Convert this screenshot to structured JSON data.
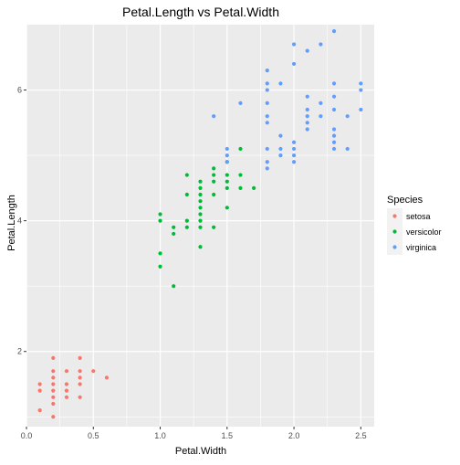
{
  "chart_data": {
    "type": "scatter",
    "title": "Petal.Length vs Petal.Width",
    "xlabel": "Petal.Width",
    "ylabel": "Petal.Length",
    "xlim": [
      0.0,
      2.6
    ],
    "ylim": [
      0.85,
      7.0
    ],
    "x_ticks": [
      0.0,
      0.5,
      1.0,
      1.5,
      2.0,
      2.5
    ],
    "x_tick_labels": [
      "0.0",
      "0.5",
      "1.0",
      "1.5",
      "2.0",
      "2.5"
    ],
    "y_ticks": [
      2,
      4,
      6
    ],
    "y_tick_labels": [
      "2",
      "4",
      "6"
    ],
    "grid": true,
    "legend": {
      "title": "Species",
      "position": "right"
    },
    "colors": {
      "panel": "#EBEBEB",
      "grid": "#FFFFFF"
    },
    "series": [
      {
        "name": "setosa",
        "color": "#F8766D",
        "points": [
          [
            0.1,
            1.1
          ],
          [
            0.1,
            1.4
          ],
          [
            0.1,
            1.5
          ],
          [
            0.2,
            1.0
          ],
          [
            0.2,
            1.2
          ],
          [
            0.2,
            1.3
          ],
          [
            0.2,
            1.4
          ],
          [
            0.2,
            1.5
          ],
          [
            0.2,
            1.6
          ],
          [
            0.2,
            1.7
          ],
          [
            0.2,
            1.9
          ],
          [
            0.3,
            1.3
          ],
          [
            0.3,
            1.4
          ],
          [
            0.3,
            1.5
          ],
          [
            0.3,
            1.7
          ],
          [
            0.4,
            1.3
          ],
          [
            0.4,
            1.5
          ],
          [
            0.4,
            1.6
          ],
          [
            0.4,
            1.7
          ],
          [
            0.4,
            1.9
          ],
          [
            0.5,
            1.7
          ],
          [
            0.6,
            1.6
          ]
        ]
      },
      {
        "name": "versicolor",
        "color": "#00BA38",
        "points": [
          [
            1.0,
            3.3
          ],
          [
            1.0,
            3.5
          ],
          [
            1.0,
            4.0
          ],
          [
            1.0,
            4.1
          ],
          [
            1.1,
            3.0
          ],
          [
            1.1,
            3.8
          ],
          [
            1.1,
            3.9
          ],
          [
            1.2,
            3.9
          ],
          [
            1.2,
            4.0
          ],
          [
            1.2,
            4.4
          ],
          [
            1.2,
            4.7
          ],
          [
            1.3,
            3.6
          ],
          [
            1.3,
            3.9
          ],
          [
            1.3,
            4.0
          ],
          [
            1.3,
            4.1
          ],
          [
            1.3,
            4.2
          ],
          [
            1.3,
            4.3
          ],
          [
            1.3,
            4.4
          ],
          [
            1.3,
            4.5
          ],
          [
            1.3,
            4.6
          ],
          [
            1.4,
            3.9
          ],
          [
            1.4,
            4.4
          ],
          [
            1.4,
            4.6
          ],
          [
            1.4,
            4.7
          ],
          [
            1.4,
            4.8
          ],
          [
            1.5,
            4.2
          ],
          [
            1.5,
            4.5
          ],
          [
            1.5,
            4.6
          ],
          [
            1.5,
            4.7
          ],
          [
            1.5,
            4.9
          ],
          [
            1.6,
            4.5
          ],
          [
            1.6,
            4.7
          ],
          [
            1.6,
            5.1
          ],
          [
            1.7,
            4.5
          ]
        ]
      },
      {
        "name": "virginica",
        "color": "#619CFF",
        "points": [
          [
            1.4,
            5.6
          ],
          [
            1.5,
            4.9
          ],
          [
            1.5,
            5.0
          ],
          [
            1.5,
            5.1
          ],
          [
            1.6,
            5.8
          ],
          [
            1.8,
            4.8
          ],
          [
            1.8,
            4.9
          ],
          [
            1.8,
            5.1
          ],
          [
            1.8,
            5.5
          ],
          [
            1.8,
            5.6
          ],
          [
            1.8,
            5.8
          ],
          [
            1.8,
            6.0
          ],
          [
            1.8,
            6.1
          ],
          [
            1.8,
            6.3
          ],
          [
            1.9,
            5.0
          ],
          [
            1.9,
            5.1
          ],
          [
            1.9,
            5.3
          ],
          [
            1.9,
            6.1
          ],
          [
            2.0,
            4.9
          ],
          [
            2.0,
            5.0
          ],
          [
            2.0,
            5.1
          ],
          [
            2.0,
            5.2
          ],
          [
            2.0,
            6.4
          ],
          [
            2.0,
            6.7
          ],
          [
            2.1,
            5.4
          ],
          [
            2.1,
            5.5
          ],
          [
            2.1,
            5.6
          ],
          [
            2.1,
            5.7
          ],
          [
            2.1,
            5.9
          ],
          [
            2.1,
            6.6
          ],
          [
            2.2,
            5.6
          ],
          [
            2.2,
            5.8
          ],
          [
            2.2,
            6.7
          ],
          [
            2.3,
            5.1
          ],
          [
            2.3,
            5.2
          ],
          [
            2.3,
            5.3
          ],
          [
            2.3,
            5.4
          ],
          [
            2.3,
            5.7
          ],
          [
            2.3,
            5.9
          ],
          [
            2.3,
            6.1
          ],
          [
            2.3,
            6.9
          ],
          [
            2.4,
            5.1
          ],
          [
            2.4,
            5.6
          ],
          [
            2.5,
            5.7
          ],
          [
            2.5,
            6.0
          ],
          [
            2.5,
            6.1
          ]
        ]
      }
    ]
  }
}
